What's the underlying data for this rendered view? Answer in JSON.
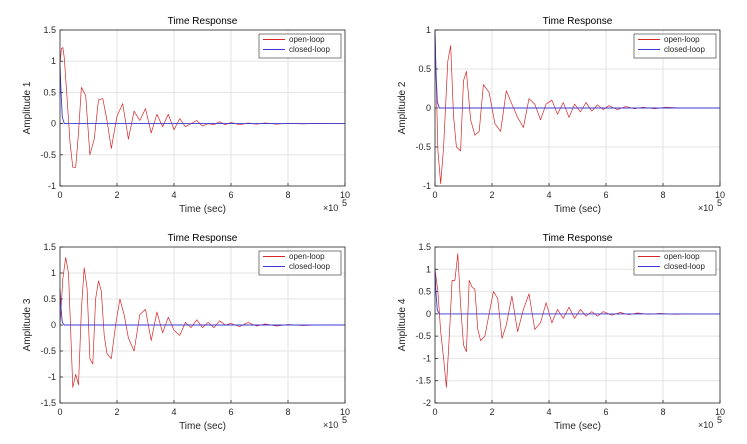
{
  "chart_data": [
    {
      "type": "line",
      "title": "Time Response",
      "xlabel": "Time (sec)",
      "ylabel": "Amplitude 1",
      "x_exponent": "×10",
      "x_exponent_power": "5",
      "xlim": [
        0,
        10
      ],
      "ylim": [
        -1,
        1.5
      ],
      "xticks": [
        "0",
        "2",
        "4",
        "6",
        "8",
        "10"
      ],
      "yticks": [
        "-1",
        "-0.5",
        "0",
        "0.5",
        "1",
        "1.5"
      ],
      "grid": true,
      "legend": "top-right",
      "series": [
        {
          "name": "open-loop",
          "color": "#d62728",
          "x": [
            0,
            0.05,
            0.1,
            0.15,
            0.25,
            0.35,
            0.45,
            0.55,
            0.65,
            0.75,
            0.9,
            1.05,
            1.2,
            1.35,
            1.5,
            1.65,
            1.8,
            2.0,
            2.2,
            2.4,
            2.6,
            2.8,
            3.0,
            3.2,
            3.4,
            3.6,
            3.8,
            4.0,
            4.2,
            4.4,
            4.6,
            4.8,
            5.0,
            5.2,
            5.4,
            5.6,
            5.8,
            6.0,
            6.3,
            6.6,
            6.9,
            7.2,
            7.6,
            8.0,
            8.5,
            9.0,
            9.5,
            10
          ],
          "y": [
            0.95,
            1.2,
            1.22,
            1.05,
            0.4,
            -0.3,
            -0.7,
            -0.7,
            -0.15,
            0.58,
            0.45,
            -0.5,
            -0.25,
            0.38,
            0.4,
            0.05,
            -0.4,
            0.12,
            0.32,
            -0.25,
            0.2,
            0.05,
            0.24,
            -0.15,
            0.15,
            -0.05,
            0.15,
            -0.1,
            0.08,
            -0.05,
            0.0,
            0.05,
            -0.04,
            0.0,
            -0.02,
            0.03,
            -0.02,
            0.02,
            -0.02,
            0.01,
            -0.01,
            0.01,
            -0.01,
            0.005,
            -0.005,
            0.003,
            0,
            0
          ]
        },
        {
          "name": "closed-loop",
          "color": "#3a3ad6",
          "x": [
            0,
            0.03,
            0.08,
            0.15,
            10
          ],
          "y": [
            0.95,
            0.55,
            0.1,
            0.0,
            0.0
          ]
        }
      ]
    },
    {
      "type": "line",
      "title": "Time Response",
      "xlabel": "Time (sec)",
      "ylabel": "Amplitude 2",
      "x_exponent": "×10",
      "x_exponent_power": "5",
      "xlim": [
        0,
        10
      ],
      "ylim": [
        -1,
        1
      ],
      "xticks": [
        "0",
        "2",
        "4",
        "6",
        "8",
        "10"
      ],
      "yticks": [
        "-1",
        "-0.5",
        "0",
        "0.5",
        "1"
      ],
      "grid": true,
      "legend": "top-right",
      "series": [
        {
          "name": "open-loop",
          "color": "#d62728",
          "x": [
            0,
            0.1,
            0.2,
            0.3,
            0.45,
            0.55,
            0.65,
            0.75,
            0.9,
            1.0,
            1.1,
            1.25,
            1.4,
            1.55,
            1.7,
            1.9,
            2.1,
            2.3,
            2.5,
            2.7,
            2.9,
            3.1,
            3.3,
            3.5,
            3.7,
            3.9,
            4.1,
            4.3,
            4.5,
            4.7,
            4.9,
            5.1,
            5.3,
            5.5,
            5.7,
            5.9,
            6.1,
            6.4,
            6.7,
            7.0,
            7.3,
            7.7,
            8.1,
            8.6,
            9.2,
            10
          ],
          "y": [
            1.0,
            -0.55,
            -0.97,
            -0.5,
            0.6,
            0.8,
            -0.1,
            -0.5,
            -0.55,
            0.35,
            0.47,
            -0.15,
            -0.35,
            -0.3,
            0.3,
            0.2,
            -0.2,
            -0.3,
            0.22,
            0.05,
            -0.12,
            -0.25,
            0.12,
            0.05,
            -0.15,
            0.05,
            0.1,
            -0.08,
            0.07,
            -0.12,
            0.05,
            -0.05,
            0.07,
            -0.04,
            0.04,
            -0.02,
            0.03,
            -0.02,
            0.02,
            -0.01,
            0.01,
            -0.01,
            0.01,
            0,
            0,
            0
          ]
        },
        {
          "name": "closed-loop",
          "color": "#3a3ad6",
          "x": [
            0,
            0.03,
            0.08,
            0.15,
            10
          ],
          "y": [
            1.0,
            0.5,
            0.08,
            0.0,
            0.0
          ]
        }
      ]
    },
    {
      "type": "line",
      "title": "Time Response",
      "xlabel": "Time (sec)",
      "ylabel": "Amplitude 3",
      "x_exponent": "×10",
      "x_exponent_power": "5",
      "xlim": [
        0,
        10
      ],
      "ylim": [
        -1.5,
        1.5
      ],
      "xticks": [
        "0",
        "2",
        "4",
        "6",
        "8",
        "10"
      ],
      "yticks": [
        "-1.5",
        "-1",
        "-0.5",
        "0",
        "0.5",
        "1",
        "1.5"
      ],
      "grid": true,
      "legend": "top-right",
      "series": [
        {
          "name": "open-loop",
          "color": "#d62728",
          "x": [
            0,
            0.1,
            0.2,
            0.3,
            0.45,
            0.55,
            0.65,
            0.75,
            0.85,
            0.95,
            1.05,
            1.15,
            1.25,
            1.35,
            1.45,
            1.55,
            1.65,
            1.8,
            1.95,
            2.1,
            2.25,
            2.4,
            2.6,
            2.8,
            3.0,
            3.2,
            3.4,
            3.6,
            3.8,
            4.0,
            4.2,
            4.4,
            4.6,
            4.8,
            5.0,
            5.2,
            5.4,
            5.6,
            5.8,
            6.0,
            6.3,
            6.6,
            6.9,
            7.2,
            7.6,
            8.0,
            8.5,
            9.0,
            9.5,
            10
          ],
          "y": [
            0.0,
            0.9,
            1.3,
            1.0,
            -1.2,
            -0.95,
            -1.15,
            0.3,
            1.1,
            0.7,
            -0.65,
            -0.75,
            0.5,
            0.85,
            0.65,
            -0.2,
            -0.55,
            -0.65,
            0.0,
            0.5,
            0.2,
            -0.25,
            -0.5,
            0.2,
            0.3,
            -0.3,
            0.25,
            -0.15,
            0.15,
            -0.1,
            -0.2,
            0.05,
            -0.05,
            0.1,
            -0.05,
            0.05,
            -0.05,
            0.08,
            0.0,
            0.03,
            -0.03,
            0.05,
            -0.02,
            0.02,
            -0.02,
            0.01,
            -0.01,
            0.0,
            0.0,
            0.0
          ]
        },
        {
          "name": "closed-loop",
          "color": "#3a3ad6",
          "x": [
            0,
            0.03,
            0.08,
            0.15,
            10
          ],
          "y": [
            0.7,
            0.35,
            0.05,
            0.0,
            0.0
          ]
        }
      ]
    },
    {
      "type": "line",
      "title": "Time Response",
      "xlabel": "Time (sec)",
      "ylabel": "Amplitude 4",
      "x_exponent": "×10",
      "x_exponent_power": "5",
      "xlim": [
        0,
        10
      ],
      "ylim": [
        -2,
        1.5
      ],
      "xticks": [
        "0",
        "2",
        "4",
        "6",
        "8",
        "10"
      ],
      "yticks": [
        "-2",
        "-1.5",
        "-1",
        "-0.5",
        "0",
        "0.5",
        "1",
        "1.5"
      ],
      "grid": true,
      "legend": "top-right",
      "series": [
        {
          "name": "open-loop",
          "color": "#d62728",
          "x": [
            0,
            0.1,
            0.2,
            0.3,
            0.4,
            0.5,
            0.6,
            0.7,
            0.8,
            0.9,
            1.0,
            1.1,
            1.2,
            1.3,
            1.4,
            1.5,
            1.6,
            1.75,
            1.9,
            2.05,
            2.2,
            2.35,
            2.5,
            2.7,
            2.9,
            3.1,
            3.3,
            3.5,
            3.7,
            3.9,
            4.1,
            4.3,
            4.5,
            4.7,
            4.9,
            5.1,
            5.3,
            5.5,
            5.7,
            5.9,
            6.2,
            6.5,
            6.8,
            7.1,
            7.5,
            7.9,
            8.4,
            9.0,
            9.5,
            10
          ],
          "y": [
            1.0,
            0.5,
            -0.4,
            -1.0,
            -1.65,
            -0.5,
            0.75,
            0.75,
            1.35,
            0.2,
            -0.7,
            -0.85,
            0.75,
            0.6,
            0.55,
            -0.35,
            -0.6,
            -0.5,
            0.0,
            0.5,
            0.35,
            -0.55,
            -0.25,
            0.4,
            -0.4,
            0.1,
            0.45,
            -0.35,
            -0.2,
            0.25,
            -0.2,
            0.1,
            -0.1,
            0.15,
            -0.1,
            0.1,
            -0.05,
            0.05,
            -0.05,
            0.05,
            -0.03,
            0.03,
            -0.02,
            0.02,
            -0.01,
            0.01,
            -0.01,
            0.0,
            0.0,
            0.0
          ]
        },
        {
          "name": "closed-loop",
          "color": "#3a3ad6",
          "x": [
            0,
            0.03,
            0.08,
            0.15,
            10
          ],
          "y": [
            1.0,
            0.5,
            0.08,
            0.0,
            0.0
          ]
        }
      ]
    }
  ]
}
